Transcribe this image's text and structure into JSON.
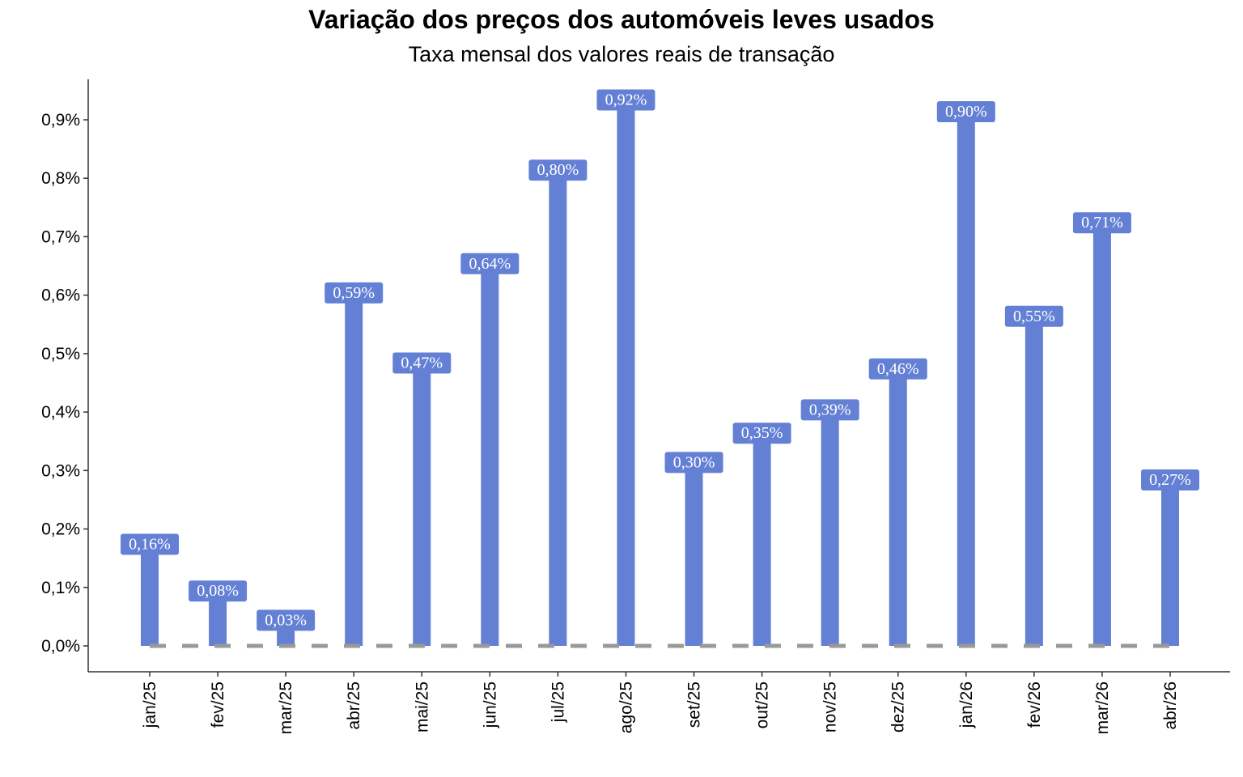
{
  "chart_data": {
    "type": "bar",
    "title": "Variação dos preços dos automóveis leves usados",
    "subtitle": "Taxa mensal dos valores reais de transação",
    "xlabel": "",
    "ylabel": "",
    "categories": [
      "jan/25",
      "fev/25",
      "mar/25",
      "abr/25",
      "mai/25",
      "jun/25",
      "jul/25",
      "ago/25",
      "set/25",
      "out/25",
      "nov/25",
      "dez/25",
      "jan/26",
      "fev/26",
      "mar/26",
      "abr/26"
    ],
    "values": [
      0.16,
      0.08,
      0.03,
      0.59,
      0.47,
      0.64,
      0.8,
      0.92,
      0.3,
      0.35,
      0.39,
      0.46,
      0.9,
      0.55,
      0.71,
      0.27
    ],
    "data_labels": [
      "0,16%",
      "0,08%",
      "0,03%",
      "0,59%",
      "0,47%",
      "0,64%",
      "0,80%",
      "0,92%",
      "0,30%",
      "0,35%",
      "0,39%",
      "0,46%",
      "0,90%",
      "0,55%",
      "0,71%",
      "0,27%"
    ],
    "yticks": [
      0,
      0.1,
      0.2,
      0.3,
      0.4,
      0.5,
      0.6,
      0.7,
      0.8,
      0.9
    ],
    "ytick_labels": [
      "0,0%",
      "0,1%",
      "0,2%",
      "0,3%",
      "0,4%",
      "0,5%",
      "0,6%",
      "0,7%",
      "0,8%",
      "0,9%"
    ],
    "ylim": [
      -0.045,
      0.97
    ],
    "reference_line": 0,
    "grid": false,
    "colors": {
      "bar": "#6380d5",
      "reference_line": "#999999",
      "axis": "#333333"
    }
  }
}
